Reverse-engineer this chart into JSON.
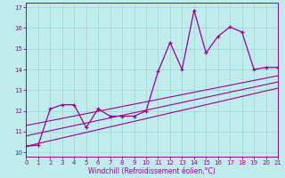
{
  "title": "",
  "xlabel": "Windchill (Refroidissement éolien,°C)",
  "bg_color": "#c0ecec",
  "grid_color": "#98d4d4",
  "line_color": "#990099",
  "xlim": [
    0,
    21
  ],
  "ylim": [
    9.8,
    17.2
  ],
  "xticks": [
    0,
    1,
    2,
    3,
    4,
    5,
    6,
    7,
    8,
    9,
    10,
    11,
    12,
    13,
    14,
    15,
    16,
    17,
    18,
    19,
    20,
    21
  ],
  "yticks": [
    10,
    11,
    12,
    13,
    14,
    15,
    16,
    17
  ],
  "main_x": [
    0,
    1,
    2,
    3,
    4,
    5,
    6,
    7,
    8,
    9,
    10,
    11,
    12,
    13,
    14,
    15,
    16,
    17,
    18,
    19,
    20,
    21
  ],
  "main_y": [
    10.3,
    10.35,
    12.1,
    12.3,
    12.3,
    11.2,
    12.1,
    11.75,
    11.75,
    11.75,
    12.0,
    13.9,
    15.3,
    14.0,
    16.85,
    14.8,
    15.6,
    16.05,
    15.8,
    14.0,
    14.1,
    14.1
  ],
  "trend1_x": [
    0,
    21
  ],
  "trend1_y": [
    10.3,
    13.1
  ],
  "trend2_x": [
    0,
    21
  ],
  "trend2_y": [
    10.8,
    13.4
  ],
  "trend3_x": [
    0,
    21
  ],
  "trend3_y": [
    11.3,
    13.7
  ]
}
